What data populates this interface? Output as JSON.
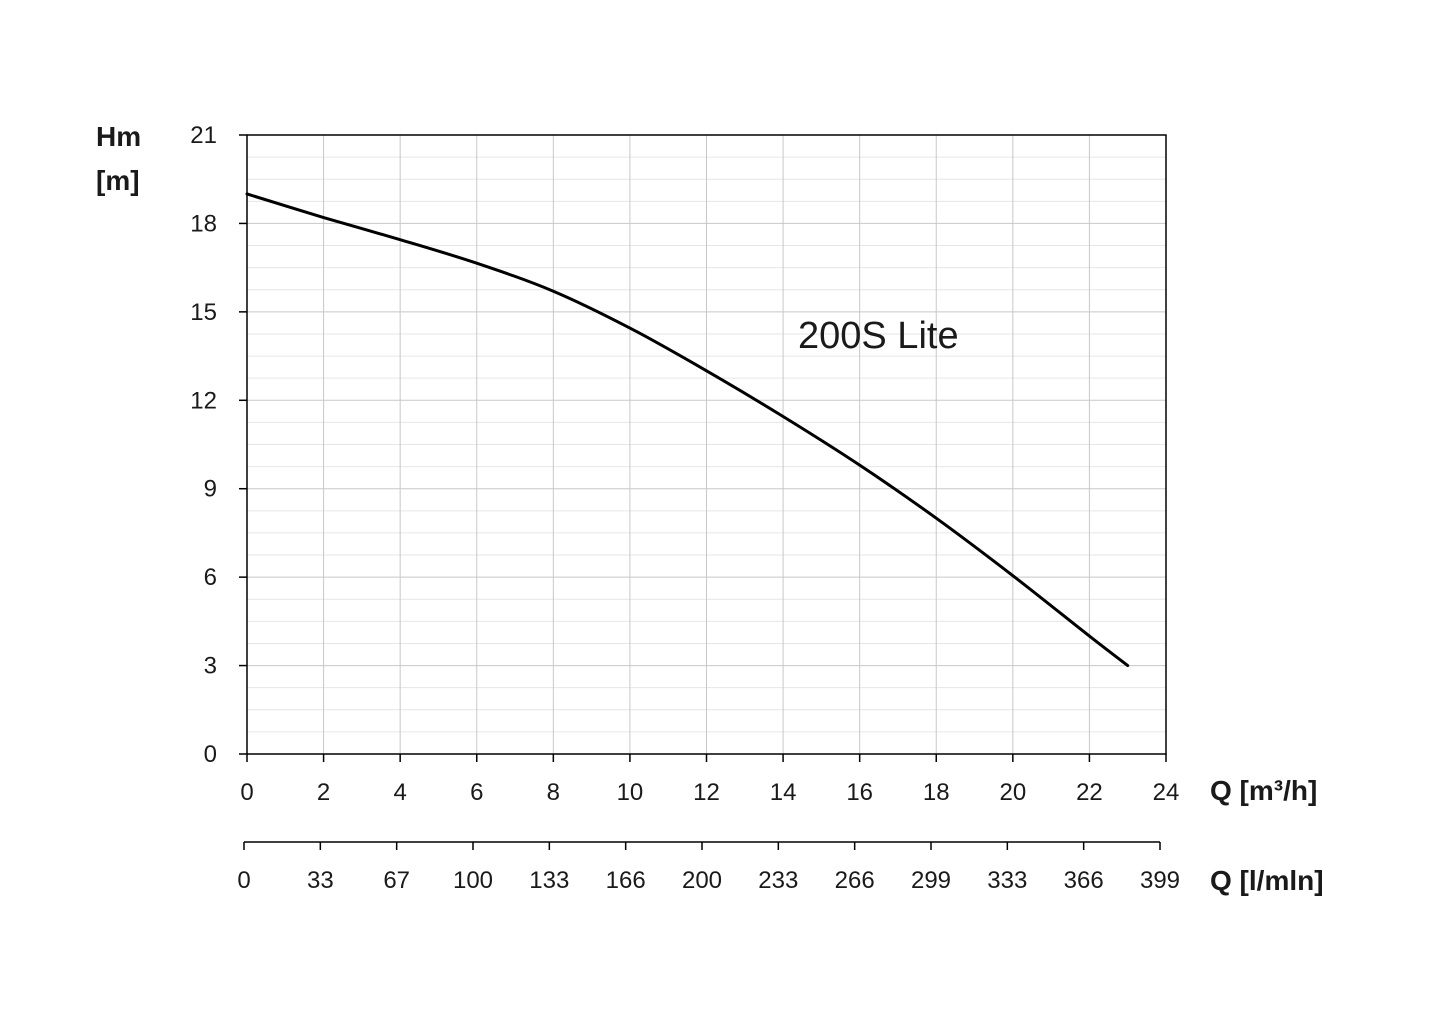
{
  "chart_data": {
    "type": "line",
    "y_axis": {
      "label_line1": "Hm",
      "label_line2": "[m]",
      "ylim": [
        0,
        21
      ],
      "ticks": [
        "0",
        "3",
        "6",
        "9",
        "12",
        "15",
        "18",
        "21"
      ],
      "tick_values": [
        0,
        3,
        6,
        9,
        12,
        15,
        18,
        21
      ],
      "minor_step": 0.75
    },
    "x_axis": {
      "label": "Q [m³/h]",
      "xlim": [
        0,
        24
      ],
      "ticks": [
        "0",
        "2",
        "4",
        "6",
        "8",
        "10",
        "12",
        "14",
        "16",
        "18",
        "20",
        "22",
        "24"
      ],
      "tick_values": [
        0,
        2,
        4,
        6,
        8,
        10,
        12,
        14,
        16,
        18,
        20,
        22,
        24
      ]
    },
    "secondary_x_axis": {
      "label": "Q [l/mln]",
      "ticks": [
        "0",
        "33",
        "67",
        "100",
        "133",
        "166",
        "200",
        "233",
        "266",
        "299",
        "333",
        "366",
        "399"
      ]
    },
    "grid": true,
    "annotation": "200S Lite",
    "series": [
      {
        "x": [
          0,
          2,
          4,
          6,
          8,
          10,
          12,
          14,
          16,
          18,
          20,
          22,
          23
        ],
        "y": [
          19,
          18.2,
          17.45,
          16.65,
          15.7,
          14.45,
          13.0,
          11.45,
          9.8,
          8.0,
          6.05,
          4.0,
          3.0
        ]
      }
    ],
    "colors": {
      "line": "#000000",
      "grid_major": "#c8c8c8",
      "grid_minor": "#e6e6e6",
      "frame": "#000000"
    }
  }
}
